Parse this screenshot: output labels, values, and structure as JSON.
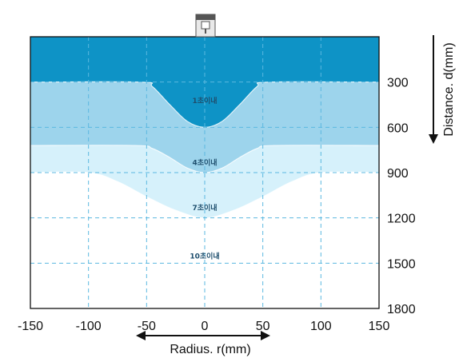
{
  "chart_data": {
    "type": "area",
    "title": "",
    "xlabel": "Radius. r(mm)",
    "ylabel": "Distance. d(mm)",
    "xlim": [
      -150,
      150
    ],
    "ylim": [
      0,
      1800
    ],
    "y_inverted": true,
    "x_ticks": [
      "-150",
      "-100",
      "-50",
      "0",
      "50",
      "100",
      "150"
    ],
    "y_ticks": [
      "300",
      "600",
      "900",
      "1200",
      "1500",
      "1800"
    ],
    "grid": true,
    "sensor_icon": "sensor-head-icon",
    "colors": {
      "zone_0": "#0e93c6",
      "zone_1": "#4fb0d8",
      "zone_2": "#9dd4ec",
      "zone_3": "#d6f1fb",
      "grid": "#5bb8e0",
      "frame": "#111111"
    },
    "zones": [
      {
        "label": "1초이내",
        "label_at": [
          0,
          440
        ],
        "boundary": [
          [
            -150,
            300
          ],
          [
            -55,
            300
          ],
          [
            -45,
            330
          ],
          [
            -30,
            450
          ],
          [
            -15,
            560
          ],
          [
            0,
            600
          ],
          [
            15,
            560
          ],
          [
            30,
            450
          ],
          [
            45,
            330
          ],
          [
            55,
            300
          ],
          [
            150,
            300
          ]
        ]
      },
      {
        "label": "4초이내",
        "label_at": [
          0,
          850
        ],
        "boundary": [
          [
            -150,
            720
          ],
          [
            -60,
            720
          ],
          [
            -45,
            740
          ],
          [
            -30,
            800
          ],
          [
            -15,
            870
          ],
          [
            0,
            900
          ],
          [
            15,
            870
          ],
          [
            30,
            800
          ],
          [
            45,
            740
          ],
          [
            60,
            720
          ],
          [
            150,
            720
          ]
        ]
      },
      {
        "label": "7초이내",
        "label_at": [
          0,
          1150
        ],
        "boundary": [
          [
            -150,
            900
          ],
          [
            -100,
            900
          ],
          [
            -75,
            960
          ],
          [
            -50,
            1060
          ],
          [
            -25,
            1150
          ],
          [
            0,
            1200
          ],
          [
            25,
            1150
          ],
          [
            50,
            1060
          ],
          [
            75,
            960
          ],
          [
            100,
            900
          ],
          [
            150,
            900
          ]
        ]
      },
      {
        "label": "10초이내",
        "label_at": [
          0,
          1470
        ],
        "boundary": [
          [
            -150,
            1500
          ],
          [
            -100,
            1500
          ],
          [
            -50,
            1500
          ],
          [
            -25,
            1530
          ],
          [
            0,
            1560
          ],
          [
            25,
            1530
          ],
          [
            50,
            1500
          ],
          [
            100,
            1500
          ],
          [
            150,
            1500
          ]
        ]
      }
    ]
  }
}
